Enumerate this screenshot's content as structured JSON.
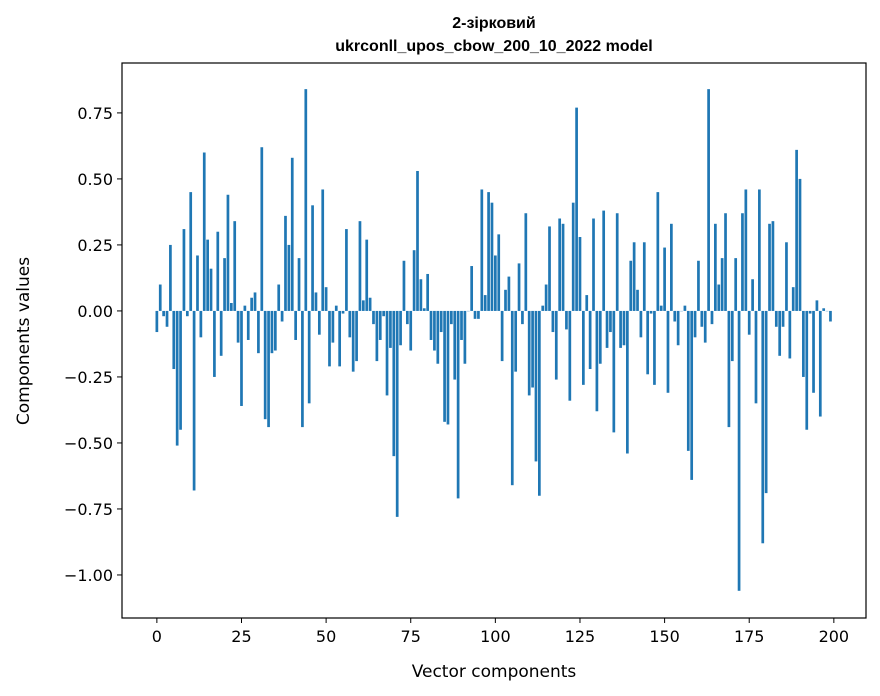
{
  "chart_data": {
    "type": "bar",
    "title": [
      "2-зірковий",
      "ukrconll_upos_cbow_200_10_2022 model"
    ],
    "xlabel": "Vector components",
    "ylabel": "Components values",
    "xlim": [
      -10.3,
      209.5
    ],
    "ylim": [
      -1.163,
      0.939
    ],
    "xticks": [
      0,
      25,
      50,
      75,
      100,
      125,
      150,
      175,
      200
    ],
    "xtick_labels": [
      "0",
      "25",
      "50",
      "75",
      "100",
      "125",
      "150",
      "175",
      "200"
    ],
    "yticks": [
      -1.0,
      -0.75,
      -0.5,
      -0.25,
      0.0,
      0.25,
      0.5,
      0.75
    ],
    "ytick_labels": [
      "−1.00",
      "−0.75",
      "−0.50",
      "−0.25",
      "0.00",
      "0.25",
      "0.50",
      "0.75"
    ],
    "grid": false,
    "color": "#1f77b4",
    "values": [
      -0.08,
      0.1,
      -0.02,
      -0.06,
      0.25,
      -0.22,
      -0.51,
      -0.45,
      0.31,
      -0.02,
      0.45,
      -0.68,
      0.21,
      -0.1,
      0.6,
      0.27,
      0.16,
      -0.25,
      0.3,
      -0.17,
      0.2,
      0.44,
      0.03,
      0.34,
      -0.12,
      -0.36,
      0.02,
      -0.11,
      0.05,
      0.07,
      -0.16,
      0.62,
      -0.41,
      -0.44,
      -0.16,
      -0.15,
      0.1,
      -0.04,
      0.36,
      0.25,
      0.58,
      -0.11,
      0.2,
      -0.44,
      0.84,
      -0.35,
      0.4,
      0.07,
      -0.09,
      0.46,
      0.09,
      -0.21,
      -0.12,
      0.02,
      -0.21,
      -0.01,
      0.31,
      -0.1,
      -0.23,
      -0.19,
      0.34,
      0.04,
      0.27,
      0.05,
      -0.05,
      -0.19,
      -0.11,
      -0.02,
      -0.32,
      -0.14,
      -0.55,
      -0.78,
      -0.13,
      0.19,
      -0.05,
      -0.15,
      0.23,
      0.53,
      0.12,
      0.01,
      0.14,
      -0.11,
      -0.15,
      -0.2,
      -0.08,
      -0.42,
      -0.43,
      -0.05,
      -0.26,
      -0.71,
      -0.11,
      -0.2,
      0.0,
      0.17,
      -0.03,
      -0.03,
      0.46,
      0.06,
      0.45,
      0.41,
      0.21,
      0.29,
      -0.19,
      0.08,
      0.13,
      -0.66,
      -0.23,
      0.18,
      -0.05,
      0.37,
      -0.32,
      -0.29,
      -0.57,
      -0.7,
      0.02,
      0.1,
      0.32,
      -0.08,
      -0.26,
      0.35,
      0.33,
      -0.07,
      -0.34,
      0.41,
      0.77,
      0.28,
      -0.28,
      0.06,
      -0.22,
      0.35,
      -0.38,
      -0.2,
      0.38,
      -0.14,
      -0.08,
      -0.46,
      0.37,
      -0.14,
      -0.13,
      -0.54,
      0.19,
      0.26,
      0.08,
      -0.1,
      0.26,
      -0.24,
      -0.01,
      -0.28,
      0.45,
      0.02,
      0.24,
      -0.31,
      0.33,
      -0.04,
      -0.13,
      0.0,
      0.02,
      -0.53,
      -0.64,
      -0.1,
      0.19,
      -0.06,
      -0.12,
      0.84,
      -0.05,
      0.33,
      0.1,
      0.2,
      0.37,
      -0.44,
      -0.19,
      0.2,
      -1.06,
      0.37,
      0.46,
      -0.09,
      0.12,
      -0.35,
      0.46,
      -0.88,
      -0.69,
      0.33,
      0.34,
      -0.06,
      -0.17,
      -0.06,
      0.26,
      -0.18,
      0.09,
      0.61,
      0.5,
      -0.25,
      -0.45,
      -0.01,
      -0.31,
      0.04,
      -0.4,
      0.01,
      0.0,
      -0.04
    ]
  }
}
